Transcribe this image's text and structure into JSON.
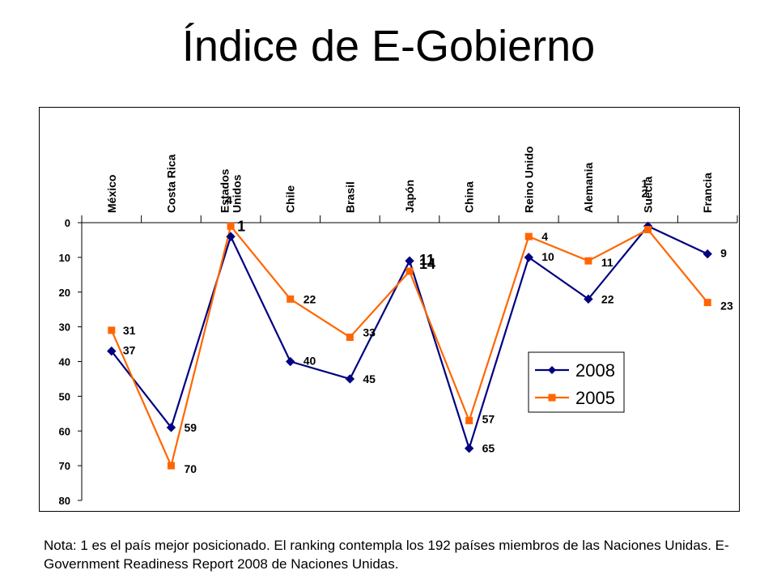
{
  "page": {
    "title": "Índice de E-Gobierno",
    "note": "Nota: 1 es el país mejor posicionado. El ranking contempla los 192 países miembros de las Naciones Unidas. E-Government Readiness Report 2008 de Naciones Unidas."
  },
  "chart_data": {
    "type": "line",
    "title": "",
    "xlabel": "",
    "ylabel": "",
    "categories": [
      "México",
      "Costa Rica",
      "Estados Unidos",
      "Chile",
      "Brasil",
      "Japón",
      "China",
      "Reino Unido",
      "Alemania",
      "Suecia",
      "Francia"
    ],
    "y_ticks": [
      "0",
      "10",
      "20",
      "30",
      "40",
      "50",
      "60",
      "70",
      "80"
    ],
    "ylim": [
      0,
      80
    ],
    "y_inverted": true,
    "grid": false,
    "legend_position": "inside-right",
    "series": [
      {
        "name": "2008",
        "color": "#000080",
        "marker": "diamond",
        "values": [
          37,
          59,
          4,
          40,
          45,
          11,
          65,
          10,
          22,
          1,
          9
        ],
        "labels": [
          "37",
          "59",
          "4",
          "40",
          "45",
          "11",
          "65",
          "10",
          "22",
          "1",
          "9"
        ]
      },
      {
        "name": "2005",
        "color": "#ff6600",
        "marker": "square",
        "values": [
          31,
          70,
          1,
          22,
          33,
          14,
          57,
          4,
          11,
          2,
          23
        ],
        "labels": [
          "31",
          "70",
          "1",
          "22",
          "33",
          "14",
          "57",
          "4",
          "11",
          "2",
          "23"
        ]
      }
    ]
  }
}
